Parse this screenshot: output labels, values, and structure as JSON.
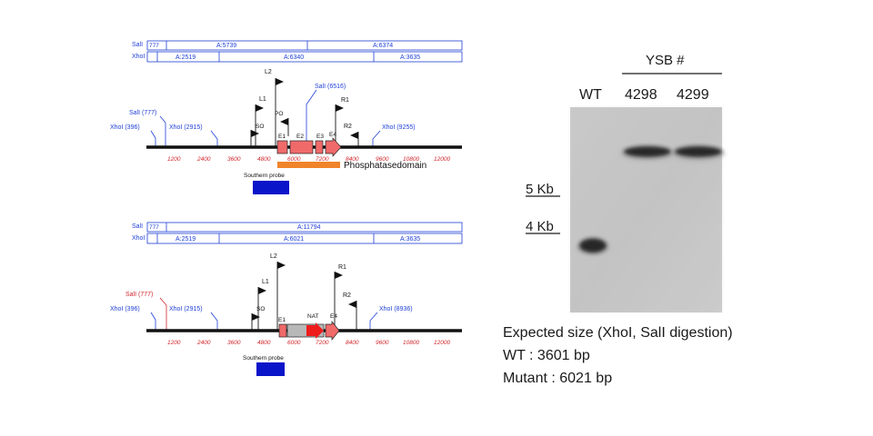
{
  "wt_map": {
    "bar_sall": {
      "enzyme": "SalI",
      "first": "777",
      "cells": [
        "A:5739",
        "A:6374"
      ]
    },
    "bar_xhoi": {
      "enzyme": "XhoI",
      "cells": [
        "A:2519",
        "A:6340",
        "A:3635"
      ]
    },
    "sites": {
      "sall_777": "SalI (777)",
      "xhoi_396": "XhoI (396)",
      "xhoi_2915": "XhoI (2915)",
      "sall_6516": "SalI (6516)",
      "xhoi_9255": "XhoI (9255)"
    },
    "primers": {
      "l1": "L1",
      "l2": "L2",
      "so": "SO",
      "po": "PO",
      "r1": "R1",
      "r2": "R2"
    },
    "exons": {
      "e1": "E1",
      "e2": "E2",
      "e3": "E3",
      "e4": "E4"
    },
    "ticks": [
      "1200",
      "2400",
      "3600",
      "4800",
      "6000",
      "7200",
      "8400",
      "9600",
      "10800",
      "12000"
    ],
    "domain_label": "Phosphatasedomain",
    "probe_label": "Southern probe"
  },
  "mut_map": {
    "bar_sall": {
      "enzyme": "SalI",
      "first": "777",
      "cells": [
        "A:11794"
      ]
    },
    "bar_xhoi": {
      "enzyme": "XhoI",
      "cells": [
        "A:2519",
        "A:6021",
        "A:3635"
      ]
    },
    "sites": {
      "sall_777": "SalI (777)",
      "xhoi_396": "XhoI (396)",
      "xhoi_2915": "XhoI (2915)",
      "xhoi_8936": "XhoI (8936)"
    },
    "primers": {
      "l1": "L1",
      "l2": "L2",
      "so": "SO",
      "r1": "R1",
      "r2": "R2"
    },
    "exons": {
      "e1": "E1",
      "nat": "NAT",
      "e4": "E4"
    },
    "ticks": [
      "1200",
      "2400",
      "3600",
      "4800",
      "6000",
      "7200",
      "8400",
      "9600",
      "10800",
      "12000"
    ],
    "probe_label": "Southern probe"
  },
  "blot": {
    "group_label": "YSB #",
    "lanes": [
      "WT",
      "4298",
      "4299"
    ],
    "markers": [
      "5 Kb",
      "4 Kb"
    ],
    "band_sizes_kb": [
      3.6,
      6.0,
      6.0
    ]
  },
  "caption": {
    "line1": "Expected size (XhoI, SalI digestion)",
    "line2": "WT : 3601 bp",
    "line3": "Mutant : 6021 bp"
  },
  "colors": {
    "enzyme_blue": "#1f3fd6",
    "tick_red": "#d0262b",
    "exon_red": "#f06a6a",
    "nat_gray": "#b8b8b8",
    "nat_arrow": "#ee1c1c",
    "domain_orange": "#f0842a",
    "probe_blue": "#0a14c8",
    "blot_bg": "#c9c9c9"
  }
}
